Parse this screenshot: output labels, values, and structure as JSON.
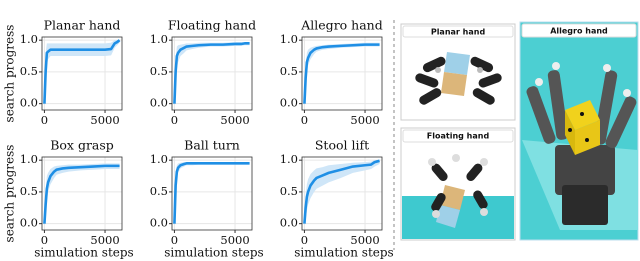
{
  "chart_data": [
    {
      "type": "line",
      "title": "Planar hand",
      "ylabel": "search progress",
      "x": [
        0,
        100,
        200,
        300,
        500,
        800,
        1000,
        1500,
        2000,
        3000,
        4000,
        5000,
        5500,
        5800,
        6000,
        6200
      ],
      "series": [
        {
          "color": "#1f8fe5",
          "values": [
            0,
            0.5,
            0.8,
            0.82,
            0.85,
            0.85,
            0.85,
            0.85,
            0.85,
            0.85,
            0.85,
            0.85,
            0.86,
            0.95,
            0.97,
            1.0
          ]
        }
      ],
      "band": {
        "color": "#cfe6f8",
        "lower": [
          0,
          0.2,
          0.6,
          0.7,
          0.75,
          0.75,
          0.75,
          0.75,
          0.75,
          0.75,
          0.75,
          0.75,
          0.76,
          0.88,
          0.92,
          0.96
        ],
        "upper": [
          0,
          0.8,
          0.95,
          0.95,
          0.95,
          0.95,
          0.95,
          0.95,
          0.95,
          0.95,
          0.95,
          0.95,
          0.96,
          1.0,
          1.0,
          1.0
        ]
      },
      "xlim": [
        -200,
        6400
      ],
      "ylim": [
        -0.1,
        1.05
      ],
      "xticks": [
        0,
        5000
      ],
      "yticks": [
        {
          "value": 0,
          "label": "0.0"
        },
        {
          "value": 0.5,
          "label": "0.5"
        },
        {
          "value": 1,
          "label": "1.0"
        }
      ],
      "grid": true
    },
    {
      "type": "line",
      "title": "Floating hand",
      "x": [
        0,
        100,
        200,
        300,
        500,
        800,
        1000,
        1500,
        2000,
        3000,
        4000,
        5000,
        5500,
        5800,
        6000,
        6200
      ],
      "series": [
        {
          "color": "#1f8fe5",
          "values": [
            0,
            0.5,
            0.75,
            0.8,
            0.85,
            0.88,
            0.9,
            0.91,
            0.92,
            0.93,
            0.93,
            0.94,
            0.94,
            0.95,
            0.95,
            0.95
          ]
        }
      ],
      "band": {
        "color": "#cfe6f8",
        "lower": [
          0,
          0.3,
          0.55,
          0.65,
          0.75,
          0.8,
          0.84,
          0.86,
          0.88,
          0.9,
          0.9,
          0.91,
          0.91,
          0.92,
          0.92,
          0.92
        ],
        "upper": [
          0,
          0.7,
          0.9,
          0.92,
          0.93,
          0.94,
          0.95,
          0.95,
          0.96,
          0.96,
          0.96,
          0.97,
          0.97,
          0.97,
          0.97,
          0.97
        ]
      },
      "xlim": [
        -200,
        6400
      ],
      "ylim": [
        -0.1,
        1.05
      ],
      "xticks": [
        0,
        5000
      ],
      "yticks": [
        {
          "value": 0,
          "label": "0.0"
        },
        {
          "value": 0.5,
          "label": "0.5"
        },
        {
          "value": 1,
          "label": "1.0"
        }
      ],
      "grid": true
    },
    {
      "type": "line",
      "title": "Allegro hand",
      "x": [
        0,
        100,
        200,
        300,
        500,
        800,
        1000,
        1500,
        2000,
        3000,
        4000,
        5000,
        5500,
        5800,
        6000,
        6200
      ],
      "series": [
        {
          "color": "#1f8fe5",
          "values": [
            0,
            0.4,
            0.65,
            0.72,
            0.8,
            0.85,
            0.87,
            0.89,
            0.9,
            0.91,
            0.92,
            0.93,
            0.93,
            0.93,
            0.93,
            0.93
          ]
        }
      ],
      "band": {
        "color": "#cfe6f8",
        "lower": [
          0,
          0.2,
          0.5,
          0.6,
          0.7,
          0.78,
          0.82,
          0.85,
          0.86,
          0.88,
          0.89,
          0.9,
          0.9,
          0.9,
          0.9,
          0.9
        ],
        "upper": [
          0,
          0.6,
          0.8,
          0.85,
          0.88,
          0.9,
          0.91,
          0.92,
          0.93,
          0.94,
          0.95,
          0.96,
          0.96,
          0.96,
          0.96,
          0.96
        ]
      },
      "xlim": [
        -200,
        6400
      ],
      "ylim": [
        -0.1,
        1.05
      ],
      "xticks": [
        0,
        5000
      ],
      "yticks": [
        {
          "value": 0,
          "label": "0.0"
        },
        {
          "value": 0.5,
          "label": "0.5"
        },
        {
          "value": 1,
          "label": "1.0"
        }
      ],
      "grid": true
    },
    {
      "type": "line",
      "title": "Box grasp",
      "ylabel": "search progress",
      "xlabel": "simulation steps",
      "x": [
        0,
        100,
        200,
        300,
        500,
        800,
        1000,
        1500,
        2000,
        3000,
        4000,
        5000,
        5500,
        5800,
        6000,
        6200
      ],
      "series": [
        {
          "color": "#1f8fe5",
          "values": [
            0,
            0.3,
            0.55,
            0.65,
            0.75,
            0.82,
            0.85,
            0.87,
            0.88,
            0.89,
            0.9,
            0.91,
            0.91,
            0.91,
            0.91,
            0.91
          ]
        }
      ],
      "band": {
        "color": "#cfe6f8",
        "lower": [
          0,
          0.1,
          0.35,
          0.5,
          0.62,
          0.72,
          0.77,
          0.8,
          0.82,
          0.84,
          0.85,
          0.86,
          0.86,
          0.86,
          0.86,
          0.86
        ],
        "upper": [
          0,
          0.5,
          0.75,
          0.8,
          0.86,
          0.9,
          0.91,
          0.92,
          0.93,
          0.93,
          0.94,
          0.95,
          0.95,
          0.95,
          0.95,
          0.95
        ]
      },
      "xlim": [
        -200,
        6400
      ],
      "ylim": [
        -0.1,
        1.05
      ],
      "xticks": [
        0,
        5000
      ],
      "yticks": [
        {
          "value": 0,
          "label": "0.0"
        },
        {
          "value": 0.5,
          "label": "0.5"
        },
        {
          "value": 1,
          "label": "1.0"
        }
      ],
      "grid": true
    },
    {
      "type": "line",
      "title": "Ball turn",
      "xlabel": "simulation steps",
      "x": [
        0,
        100,
        200,
        300,
        500,
        800,
        1000,
        1500,
        2000,
        3000,
        4000,
        5000,
        5500,
        5800,
        6000,
        6200
      ],
      "series": [
        {
          "color": "#1f8fe5",
          "values": [
            0,
            0.6,
            0.82,
            0.88,
            0.92,
            0.94,
            0.95,
            0.95,
            0.95,
            0.95,
            0.95,
            0.95,
            0.95,
            0.95,
            0.95,
            0.95
          ]
        }
      ],
      "band": {
        "color": "#cfe6f8",
        "lower": [
          0,
          0.4,
          0.7,
          0.8,
          0.87,
          0.9,
          0.92,
          0.92,
          0.93,
          0.93,
          0.93,
          0.93,
          0.93,
          0.93,
          0.93,
          0.93
        ],
        "upper": [
          0,
          0.8,
          0.92,
          0.95,
          0.96,
          0.97,
          0.97,
          0.97,
          0.97,
          0.97,
          0.97,
          0.97,
          0.97,
          0.97,
          0.97,
          0.97
        ]
      },
      "xlim": [
        -200,
        6400
      ],
      "ylim": [
        -0.1,
        1.05
      ],
      "xticks": [
        0,
        5000
      ],
      "yticks": [
        {
          "value": 0,
          "label": "0.0"
        },
        {
          "value": 0.5,
          "label": "0.5"
        },
        {
          "value": 1,
          "label": "1.0"
        }
      ],
      "grid": true
    },
    {
      "type": "line",
      "title": "Stool lift",
      "xlabel": "simulation steps",
      "x": [
        0,
        100,
        200,
        300,
        500,
        800,
        1000,
        1500,
        2000,
        3000,
        4000,
        5000,
        5500,
        5800,
        6000,
        6200
      ],
      "series": [
        {
          "color": "#1f8fe5",
          "values": [
            0,
            0.25,
            0.42,
            0.5,
            0.6,
            0.68,
            0.72,
            0.76,
            0.8,
            0.85,
            0.9,
            0.92,
            0.93,
            0.97,
            0.98,
            0.99
          ]
        }
      ],
      "band": {
        "color": "#cfe6f8",
        "lower": [
          0,
          0.05,
          0.2,
          0.3,
          0.4,
          0.5,
          0.55,
          0.6,
          0.65,
          0.72,
          0.8,
          0.84,
          0.86,
          0.9,
          0.92,
          0.94
        ],
        "upper": [
          0,
          0.45,
          0.62,
          0.7,
          0.78,
          0.84,
          0.87,
          0.89,
          0.92,
          0.94,
          0.96,
          0.97,
          0.98,
          1.0,
          1.0,
          1.0
        ]
      },
      "xlim": [
        -200,
        6400
      ],
      "ylim": [
        -0.1,
        1.05
      ],
      "xticks": [
        0,
        5000
      ],
      "yticks": [
        {
          "value": 0,
          "label": "0.0"
        },
        {
          "value": 0.5,
          "label": "0.5"
        },
        {
          "value": 1,
          "label": "1.0"
        }
      ],
      "grid": true
    }
  ],
  "illustrations": {
    "panels": [
      {
        "label": "Planar hand"
      },
      {
        "label": "Floating hand"
      },
      {
        "label": "Allegro hand"
      }
    ]
  }
}
